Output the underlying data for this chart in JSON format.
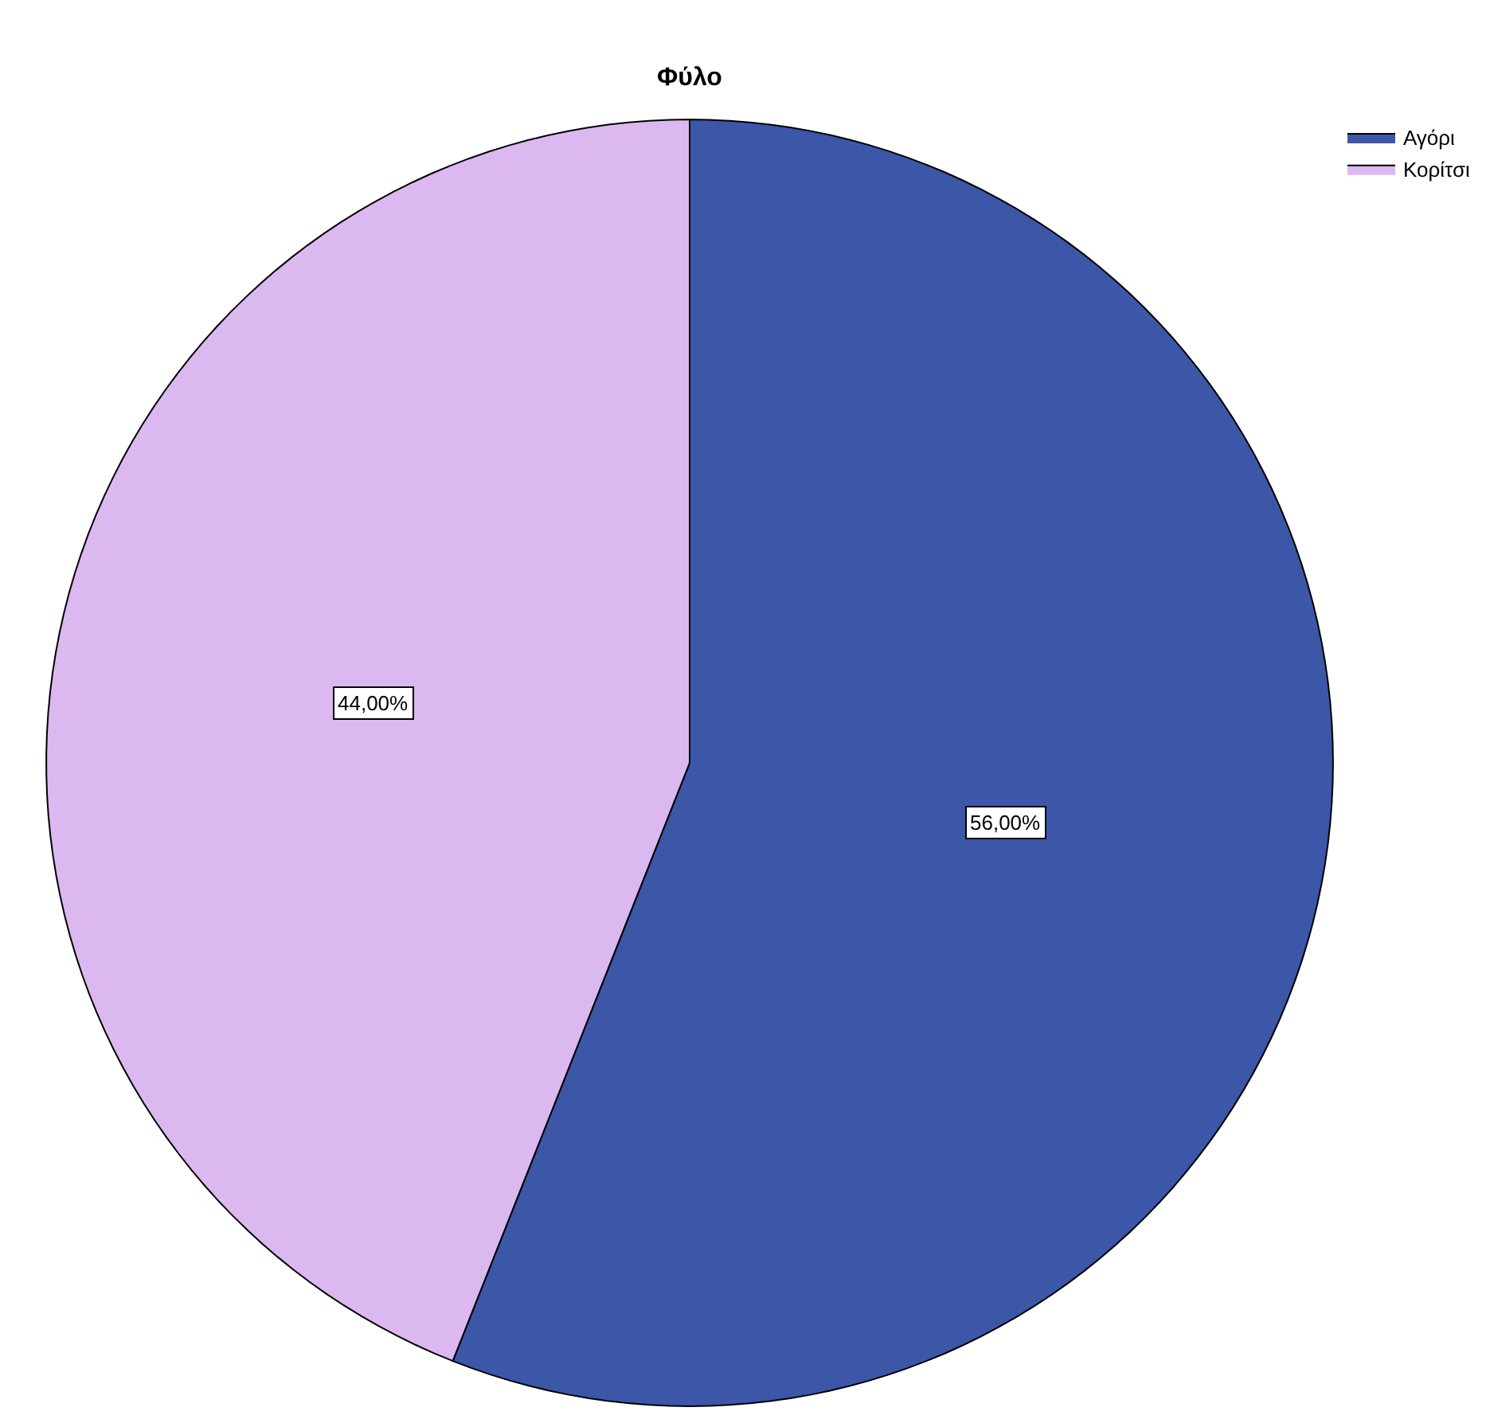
{
  "chart_data": {
    "type": "pie",
    "title": "Φύλο",
    "categories": [
      "Αγόρι",
      "Κορίτσι"
    ],
    "values": [
      56,
      44
    ],
    "colors": [
      "#3c56a8",
      "#dcb8f0"
    ],
    "value_labels": [
      "56,00%",
      "44,00%"
    ],
    "legend": "top right"
  }
}
